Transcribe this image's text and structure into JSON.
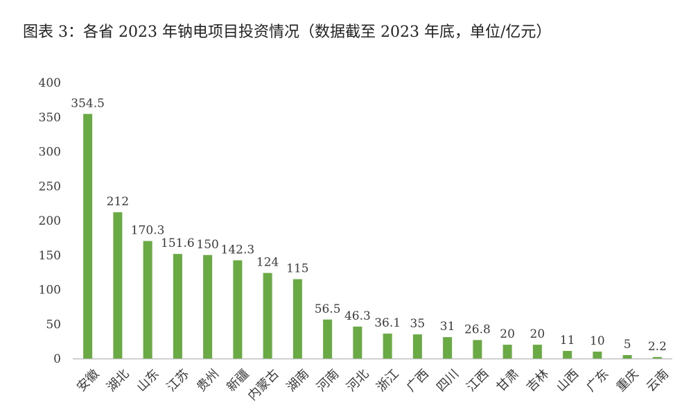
{
  "title": "图表 3：各省 2023 年钠电项目投资情况（数据截至 2023 年底，单位/亿元）",
  "chart_data": {
    "type": "bar",
    "title": "图表 3：各省 2023 年钠电项目投资情况（数据截至 2023 年底，单位/亿元）",
    "xlabel": "",
    "ylabel": "",
    "ylim": [
      0,
      400
    ],
    "yticks": [
      0,
      50,
      100,
      150,
      200,
      250,
      300,
      350,
      400
    ],
    "grid": false,
    "legend": "none",
    "bar_color": "#6aaa45",
    "categories": [
      "安徽",
      "湖北",
      "山东",
      "江苏",
      "贵州",
      "新疆",
      "内蒙古",
      "湖南",
      "河南",
      "河北",
      "浙江",
      "广西",
      "四川",
      "江西",
      "甘肃",
      "吉林",
      "山西",
      "广东",
      "重庆",
      "云南"
    ],
    "values": [
      354.5,
      212,
      170.3,
      151.6,
      150,
      142.3,
      124,
      115,
      56.5,
      46.3,
      36.1,
      35,
      31,
      26.8,
      20,
      20,
      11,
      10,
      5,
      2.2
    ],
    "value_labels": [
      "354.5",
      "212",
      "170.3",
      "151.6",
      "150",
      "142.3",
      "124",
      "115",
      "56.5",
      "46.3",
      "36.1",
      "35",
      "31",
      "26.8",
      "20",
      "20",
      "11",
      "10",
      "5",
      "2.2"
    ]
  }
}
